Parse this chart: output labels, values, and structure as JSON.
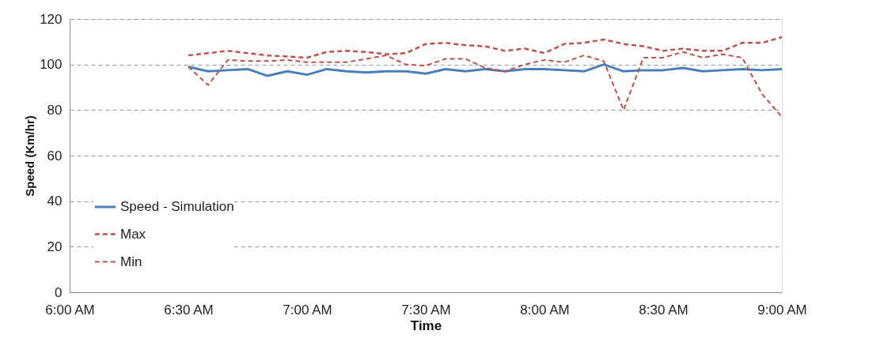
{
  "chart_data": {
    "type": "line",
    "xlabel": "Time",
    "ylabel": "Speed (Km/hr)",
    "x": [
      6.5,
      6.583333,
      6.666667,
      6.75,
      6.833333,
      6.916667,
      7.0,
      7.083333,
      7.166667,
      7.25,
      7.333333,
      7.416667,
      7.5,
      7.583333,
      7.666667,
      7.75,
      7.833333,
      7.916667,
      8.0,
      8.083333,
      8.166667,
      8.25,
      8.333333,
      8.416667,
      8.5,
      8.583333,
      8.666667,
      8.75,
      8.833333,
      8.916667,
      9.0
    ],
    "series": [
      {
        "name": "Speed - Simulation",
        "color": "#4a7ebb",
        "line_style": "solid",
        "values": [
          99,
          97,
          97.5,
          98,
          95,
          97,
          95.5,
          98,
          97,
          96.5,
          97,
          97,
          96,
          98,
          97,
          98,
          97,
          98,
          98,
          97.5,
          97,
          100,
          97,
          97.5,
          97.5,
          98.5,
          97,
          97.5,
          98,
          97.5,
          98
        ]
      },
      {
        "name": "Max",
        "color": "#c0504d",
        "line_style": "dashed",
        "values": [
          104,
          105,
          106,
          105,
          104,
          103.5,
          103,
          105.5,
          106,
          105.5,
          104.5,
          105,
          109,
          109.5,
          108.5,
          108,
          106,
          107,
          105,
          109,
          109.5,
          111,
          109,
          108,
          106,
          107,
          106,
          106,
          109.5,
          109.5,
          112
        ]
      },
      {
        "name": "Min",
        "color": "#c0504d",
        "line_style": "dashed",
        "values": [
          99,
          91,
          102,
          101.5,
          101.5,
          102,
          101,
          101,
          101,
          102.5,
          104,
          100,
          99.5,
          102.5,
          102.5,
          98.5,
          97,
          100,
          102,
          101,
          104,
          101.5,
          80,
          103,
          103,
          105.5,
          103,
          104.5,
          103,
          87,
          77
        ]
      }
    ],
    "xlim": [
      6.0,
      9.0
    ],
    "xticks": [
      {
        "value": 6.0,
        "label": "6:00 AM"
      },
      {
        "value": 6.5,
        "label": "6:30 AM"
      },
      {
        "value": 7.0,
        "label": "7:00 AM"
      },
      {
        "value": 7.5,
        "label": "7:30 AM"
      },
      {
        "value": 8.0,
        "label": "8:00 AM"
      },
      {
        "value": 8.5,
        "label": "8:30 AM"
      },
      {
        "value": 9.0,
        "label": "9:00 AM"
      }
    ],
    "ylim": [
      0,
      120
    ],
    "yticks": [
      0,
      20,
      40,
      60,
      80,
      100,
      120
    ],
    "grid": "y",
    "legend": "bottom left",
    "marker": "none"
  }
}
